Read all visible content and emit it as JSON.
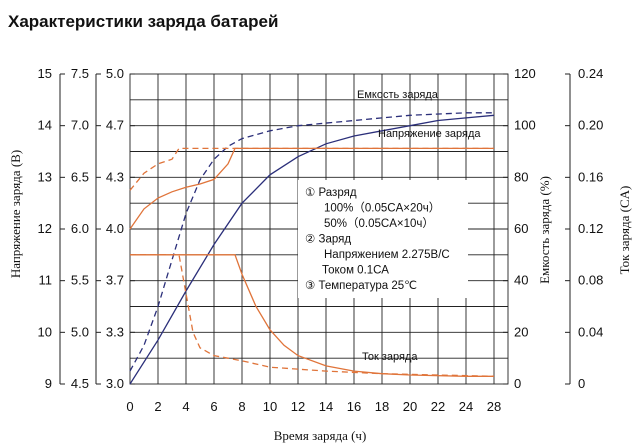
{
  "chart_data": {
    "type": "line",
    "title": "Характеристики заряда батарей",
    "xlabel": "Время заряда (ч)",
    "x_ticks": [
      "0",
      "2",
      "4",
      "6",
      "8",
      "10",
      "12",
      "14",
      "16",
      "18",
      "20",
      "22",
      "24",
      "28"
    ],
    "xlim": [
      0,
      28
    ],
    "left_axes": [
      {
        "label": "Напряжение заряда (В)",
        "ticks": [
          "15",
          "14",
          "13",
          "12",
          "11",
          "10",
          "9"
        ],
        "range": [
          9,
          15
        ]
      },
      {
        "label": "",
        "ticks": [
          "7.5",
          "7.0",
          "6.5",
          "6.0",
          "5.5",
          "5.0",
          "4.5"
        ],
        "range": [
          4.5,
          7.5
        ]
      },
      {
        "label": "",
        "ticks": [
          "5.0",
          "4.7",
          "4.3",
          "4.0",
          "3.7",
          "3.3",
          "3.0"
        ],
        "range": [
          3.0,
          5.0
        ]
      }
    ],
    "right_axes": [
      {
        "label": "Емкость заряда (%)",
        "ticks": [
          "120",
          "100",
          "80",
          "60",
          "40",
          "20",
          "0"
        ],
        "range": [
          0,
          120
        ]
      },
      {
        "label": "Ток заряда (CA)",
        "ticks": [
          "0.24",
          "0.20",
          "0.16",
          "0.12",
          "0.08",
          "0.04",
          "0"
        ],
        "range": [
          0,
          0.24
        ]
      }
    ],
    "grid": true,
    "series_labels": {
      "capacity": "Емкость заряда",
      "voltage": "Напряжение заряда",
      "current": "Ток заряда"
    },
    "colors": {
      "capacity": "#2b2f7a",
      "voltage": "#e0743a",
      "current": "#e0743a"
    },
    "series": [
      {
        "key": "capacity_100",
        "axis": "capacity_pct",
        "style": "solid",
        "color": "#2b2f7a",
        "points": [
          [
            0,
            0
          ],
          [
            2,
            17
          ],
          [
            4,
            36
          ],
          [
            6,
            54
          ],
          [
            8,
            70
          ],
          [
            10,
            81
          ],
          [
            12,
            88
          ],
          [
            14,
            93
          ],
          [
            16,
            96
          ],
          [
            18,
            98
          ],
          [
            20,
            100
          ],
          [
            22,
            102
          ],
          [
            24,
            103
          ],
          [
            26,
            104
          ]
        ]
      },
      {
        "key": "capacity_50",
        "axis": "capacity_pct",
        "style": "dashed",
        "color": "#2b2f7a",
        "points": [
          [
            0,
            5
          ],
          [
            1,
            15
          ],
          [
            2,
            30
          ],
          [
            3,
            48
          ],
          [
            4,
            66
          ],
          [
            5,
            79
          ],
          [
            6,
            87
          ],
          [
            7,
            92
          ],
          [
            8,
            95
          ],
          [
            10,
            98
          ],
          [
            12,
            100
          ],
          [
            16,
            102
          ],
          [
            20,
            104
          ],
          [
            24,
            105
          ],
          [
            26,
            105
          ]
        ]
      },
      {
        "key": "voltage_100",
        "axis": "voltage_cell",
        "style": "solid",
        "color": "#e0743a",
        "points": [
          [
            0,
            4.0
          ],
          [
            1,
            4.13
          ],
          [
            2,
            4.2
          ],
          [
            3,
            4.24
          ],
          [
            4,
            4.27
          ],
          [
            5,
            4.29
          ],
          [
            6,
            4.32
          ],
          [
            7,
            4.42
          ],
          [
            7.5,
            4.52
          ],
          [
            26,
            4.52
          ]
        ]
      },
      {
        "key": "voltage_50",
        "axis": "voltage_cell",
        "style": "dashed",
        "color": "#e0743a",
        "points": [
          [
            0,
            4.25
          ],
          [
            1,
            4.36
          ],
          [
            2,
            4.42
          ],
          [
            3,
            4.45
          ],
          [
            3.5,
            4.52
          ],
          [
            26,
            4.52
          ]
        ]
      },
      {
        "key": "current_100",
        "axis": "current_ca",
        "style": "solid",
        "color": "#e0743a",
        "points": [
          [
            0,
            0.1
          ],
          [
            7.5,
            0.1
          ],
          [
            8,
            0.085
          ],
          [
            9,
            0.06
          ],
          [
            10,
            0.042
          ],
          [
            11,
            0.03
          ],
          [
            12,
            0.022
          ],
          [
            14,
            0.014
          ],
          [
            16,
            0.01
          ],
          [
            18,
            0.008
          ],
          [
            20,
            0.007
          ],
          [
            24,
            0.006
          ],
          [
            26,
            0.006
          ]
        ]
      },
      {
        "key": "current_50",
        "axis": "current_ca",
        "style": "dashed",
        "color": "#e0743a",
        "points": [
          [
            0,
            0.1
          ],
          [
            3.5,
            0.1
          ],
          [
            4,
            0.07
          ],
          [
            4.5,
            0.04
          ],
          [
            5,
            0.028
          ],
          [
            6,
            0.022
          ],
          [
            7,
            0.02
          ],
          [
            8,
            0.018
          ],
          [
            10,
            0.013
          ],
          [
            14,
            0.01
          ],
          [
            18,
            0.008
          ],
          [
            22,
            0.007
          ],
          [
            26,
            0.006
          ]
        ]
      }
    ],
    "legend_box": {
      "lines": [
        "①  Разряд",
        "100%（0.05CA×20ч）",
        "50%（0.05CA×10ч）",
        "②  Заряд",
        "Напряжением 2.275В/С",
        "Током 0.1СА",
        "③  Температура 25℃"
      ]
    }
  }
}
